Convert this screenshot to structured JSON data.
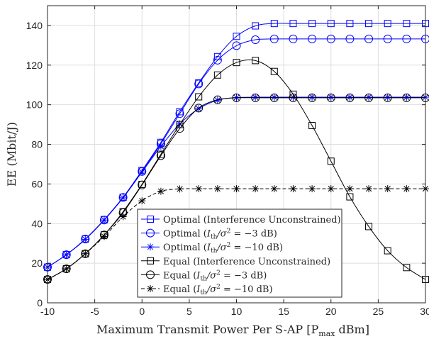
{
  "chart_data": {
    "type": "line",
    "xlabel": "Maximum Transmit Power Per S-AP [P",
    "xlabel_sub": "max",
    "xlabel_tail": " dBm]",
    "ylabel": "EE (Mbit/J)",
    "xlim": [
      -10,
      30
    ],
    "ylim": [
      0,
      150
    ],
    "xticks": [
      "-10",
      "-5",
      "0",
      "5",
      "10",
      "15",
      "20",
      "25",
      "30"
    ],
    "yticks": [
      "0",
      "20",
      "40",
      "60",
      "80",
      "100",
      "120",
      "140"
    ],
    "grid": true,
    "legend_position": "bottom-center",
    "x": [
      -10,
      -8,
      -6,
      -4,
      -2,
      0,
      2,
      4,
      6,
      8,
      10,
      12,
      14,
      16,
      18,
      20,
      22,
      24,
      26,
      28,
      30
    ],
    "series": [
      {
        "name": "Optimal (Interference Unconstrained)",
        "legend": [
          "Optimal (Interference Unconstrained)"
        ],
        "color": "#0000ff",
        "marker": "square",
        "dash": "solid",
        "values": [
          18,
          24.3,
          32.2,
          42,
          53.3,
          66.8,
          81,
          96.5,
          111,
          124.3,
          134.5,
          139.8,
          141,
          141,
          141,
          141,
          141,
          141,
          141,
          141,
          141
        ]
      },
      {
        "name": "Optimal (I_th/σ² = −3 dB)",
        "legend": [
          "Optimal (",
          "I",
          "th",
          "/σ",
          "2",
          " = −3 dB)"
        ],
        "color": "#0000ff",
        "marker": "circle",
        "dash": "solid",
        "values": [
          18,
          24.3,
          32.2,
          41.8,
          53.2,
          66.3,
          80.3,
          95.5,
          110.5,
          122.5,
          129.8,
          132.8,
          133.2,
          133.2,
          133.2,
          133.2,
          133.2,
          133.2,
          133.2,
          133.2,
          133.2
        ]
      },
      {
        "name": "Optimal (I_th/σ² = −10 dB)",
        "legend": [
          "Optimal (",
          "I",
          "th",
          "/σ",
          "2",
          " = −10 dB)"
        ],
        "color": "#0000ff",
        "marker": "star",
        "dash": "solid",
        "values": [
          18,
          24.3,
          32,
          41.8,
          53,
          66,
          79,
          90.3,
          98,
          102.3,
          103.6,
          103.8,
          103.8,
          103.8,
          103.8,
          103.8,
          103.8,
          103.8,
          103.8,
          103.8,
          103.8
        ]
      },
      {
        "name": "Equal (Interference Unconstrained)",
        "legend": [
          "Equal (Interference Unconstrained)"
        ],
        "color": "#000000",
        "marker": "square",
        "dash": "solid",
        "values": [
          11.8,
          17.2,
          24.8,
          34.3,
          46,
          59.8,
          75,
          90,
          104,
          115,
          121.3,
          122.3,
          116.8,
          105.3,
          89.5,
          71.5,
          53.5,
          38.5,
          26.3,
          17.8,
          11.8
        ]
      },
      {
        "name": "Equal (I_th/σ² = −3 dB)",
        "legend": [
          "Equal (",
          "I",
          "th",
          "/σ",
          "2",
          " = −3 dB)"
        ],
        "color": "#000000",
        "marker": "circle",
        "dash": "solid",
        "values": [
          11.8,
          17.2,
          24.8,
          34.3,
          45.5,
          59.5,
          74.3,
          88,
          98.3,
          102.5,
          103.5,
          103.5,
          103.5,
          103.5,
          103.5,
          103.5,
          103.5,
          103.5,
          103.5,
          103.5,
          103.5
        ]
      },
      {
        "name": "Equal (I_th/σ² = −10 dB)",
        "legend": [
          "Equal (",
          "I",
          "th",
          "/σ",
          "2",
          " = −10 dB)"
        ],
        "color": "#000000",
        "marker": "star",
        "dash": "dashed",
        "values": [
          11.8,
          17.2,
          24.8,
          33.5,
          43.5,
          51.5,
          56.3,
          57.5,
          57.6,
          57.6,
          57.6,
          57.6,
          57.6,
          57.6,
          57.6,
          57.6,
          57.6,
          57.6,
          57.6,
          57.6,
          57.6
        ]
      }
    ]
  }
}
